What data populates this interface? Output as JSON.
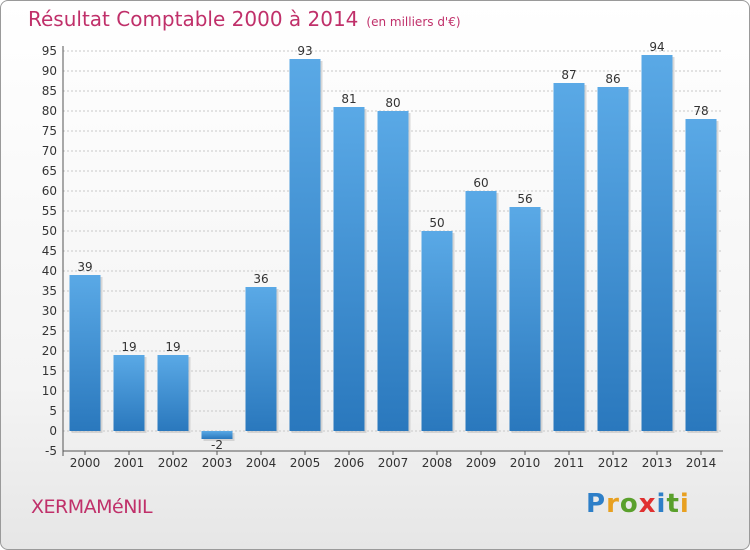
{
  "header": {
    "title": "Résultat Comptable 2000 à 2014",
    "unit": "(en milliers d'€)"
  },
  "footer": {
    "commune": "XERMAMéNIL"
  },
  "logo": {
    "letters": [
      "P",
      "r",
      "o",
      "x",
      "i",
      "t",
      "i"
    ],
    "colors": [
      "#2e7fc8",
      "#e8a020",
      "#5aa02c",
      "#e03030",
      "#2e7fc8",
      "#5aa02c",
      "#e8a020"
    ]
  },
  "colors": {
    "bar_top": "#5aa9e6",
    "bar_bottom": "#2a78bd",
    "title": "#c0306a",
    "grid": "#c8c8c8"
  },
  "chart_data": {
    "type": "bar",
    "title": "Résultat Comptable 2000 à 2014",
    "ylabel": "",
    "xlabel": "",
    "categories": [
      "2000",
      "2001",
      "2002",
      "2003",
      "2004",
      "2005",
      "2006",
      "2007",
      "2008",
      "2009",
      "2010",
      "2011",
      "2012",
      "2013",
      "2014"
    ],
    "values": [
      39,
      19,
      19,
      -2,
      36,
      93,
      81,
      80,
      50,
      60,
      56,
      87,
      86,
      94,
      78
    ],
    "ylim": [
      -5,
      95
    ],
    "yticks": [
      -5,
      0,
      5,
      10,
      15,
      20,
      25,
      30,
      35,
      40,
      45,
      50,
      55,
      60,
      65,
      70,
      75,
      80,
      85,
      90,
      95
    ],
    "grid": true
  }
}
